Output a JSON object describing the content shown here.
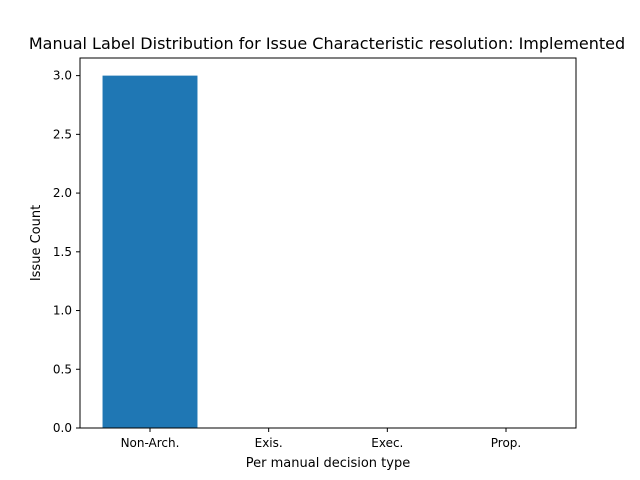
{
  "chart_data": {
    "type": "bar",
    "title": "Manual Label Distribution for Issue Characteristic resolution: Implemented",
    "xlabel": "Per manual decision type",
    "ylabel": "Issue Count",
    "categories": [
      "Non-Arch.",
      "Exis.",
      "Exec.",
      "Prop."
    ],
    "values": [
      3,
      0,
      0,
      0
    ],
    "ylim": [
      0,
      3.15
    ],
    "yticks": [
      "0.0",
      "0.5",
      "1.0",
      "1.5",
      "2.0",
      "2.5",
      "3.0"
    ],
    "grid": false,
    "bar_color": "#1f77b4"
  }
}
